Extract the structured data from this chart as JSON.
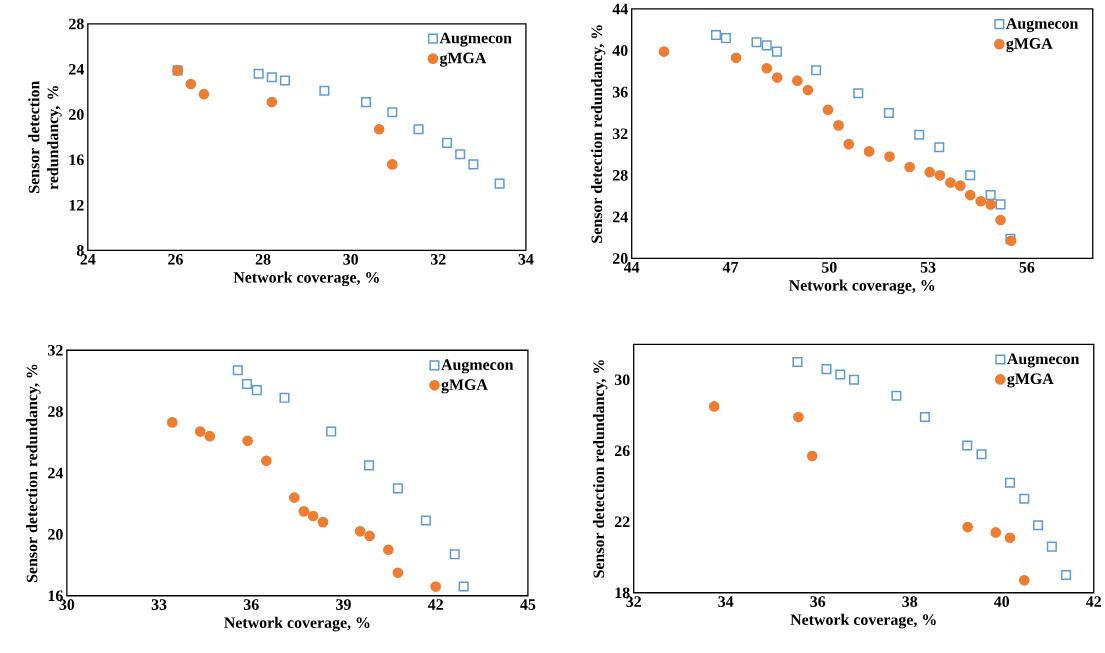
{
  "chart_data": [
    {
      "type": "scatter",
      "xlabel": "Network coverage, %",
      "ylabel": "Sensor detection redundancy, %",
      "xlim": [
        24,
        34
      ],
      "xticks": [
        24,
        26,
        28,
        30,
        32,
        34
      ],
      "ylim": [
        8,
        28
      ],
      "yticks": [
        8,
        12,
        16,
        20,
        24,
        28
      ],
      "legend": "top right",
      "series": [
        {
          "name": "Augmecon",
          "color": "#5b9bd5",
          "marker": "square",
          "x": [
            26.05,
            27.9,
            28.2,
            28.5,
            29.4,
            30.35,
            30.95,
            31.55,
            32.2,
            32.5,
            32.8,
            33.4
          ],
          "values": [
            23.9,
            23.6,
            23.3,
            23.0,
            22.1,
            21.1,
            20.2,
            18.7,
            17.5,
            16.5,
            15.6,
            13.9
          ]
        },
        {
          "name": "gMGA",
          "color": "#ed7d31",
          "marker": "circle",
          "x": [
            26.05,
            26.35,
            26.65,
            28.2,
            30.65,
            30.95
          ],
          "values": [
            23.9,
            22.7,
            21.8,
            21.1,
            18.7,
            15.6
          ]
        }
      ]
    },
    {
      "type": "scatter",
      "xlabel": "Network coverage, %",
      "ylabel": "Sensor detection redundancy, %",
      "xlim": [
        44,
        58
      ],
      "xticks": [
        44,
        47,
        50,
        53,
        56
      ],
      "ylim": [
        20,
        44
      ],
      "yticks": [
        20,
        24,
        28,
        32,
        36,
        40,
        44
      ],
      "legend": "top right",
      "series": [
        {
          "name": "Augmecon",
          "color": "#5b9bd5",
          "marker": "square",
          "x": [
            46.56,
            46.86,
            47.79,
            48.1,
            48.41,
            49.6,
            50.88,
            51.81,
            52.73,
            53.34,
            54.28,
            54.9,
            55.2,
            55.5
          ],
          "values": [
            41.5,
            41.2,
            40.8,
            40.5,
            39.9,
            38.1,
            35.9,
            34.0,
            31.9,
            30.7,
            28.0,
            26.1,
            25.2,
            21.9
          ]
        },
        {
          "name": "gMGA",
          "color": "#ed7d31",
          "marker": "circle",
          "x": [
            44.98,
            47.17,
            48.1,
            48.42,
            49.03,
            49.35,
            49.96,
            50.28,
            50.59,
            51.21,
            51.83,
            52.44,
            53.05,
            53.36,
            53.68,
            53.98,
            54.28,
            54.6,
            54.9,
            55.2,
            55.52
          ],
          "values": [
            39.9,
            39.3,
            38.3,
            37.4,
            37.1,
            36.2,
            34.3,
            32.8,
            31.0,
            30.3,
            29.8,
            28.8,
            28.3,
            28.0,
            27.3,
            27.0,
            26.1,
            25.5,
            25.2,
            23.7,
            21.7
          ]
        }
      ]
    },
    {
      "type": "scatter",
      "xlabel": "Network coverage, %",
      "ylabel": "Sensor detection redundancy, %",
      "xlim": [
        30,
        45
      ],
      "xticks": [
        30,
        33,
        36,
        39,
        42,
        45
      ],
      "ylim": [
        16,
        32
      ],
      "yticks": [
        16,
        20,
        24,
        28,
        32
      ],
      "legend": "top right",
      "series": [
        {
          "name": "Augmecon",
          "color": "#5b9bd5",
          "marker": "square",
          "x": [
            35.56,
            35.86,
            36.18,
            37.08,
            38.6,
            39.83,
            40.77,
            41.68,
            42.62,
            42.91
          ],
          "values": [
            30.7,
            29.8,
            29.4,
            28.9,
            26.7,
            24.5,
            23.0,
            20.9,
            18.7,
            16.6
          ]
        },
        {
          "name": "gMGA",
          "color": "#ed7d31",
          "marker": "circle",
          "x": [
            33.43,
            34.34,
            34.65,
            35.88,
            36.49,
            37.4,
            37.71,
            38.01,
            38.33,
            39.54,
            39.85,
            40.46,
            40.77,
            42.0
          ],
          "values": [
            27.3,
            26.7,
            26.4,
            26.1,
            24.8,
            22.4,
            21.5,
            21.2,
            20.8,
            20.2,
            19.9,
            19.0,
            17.5,
            16.6
          ]
        }
      ]
    },
    {
      "type": "scatter",
      "xlabel": "Network coverage, %",
      "ylabel": "Sensor detection redundancy, %",
      "xlim": [
        32,
        42
      ],
      "xticks": [
        32,
        34,
        36,
        38,
        40,
        42
      ],
      "ylim": [
        18,
        32
      ],
      "yticks": [
        18,
        22,
        26,
        30
      ],
      "legend": "top right",
      "series": [
        {
          "name": "Augmecon",
          "color": "#5b9bd5",
          "marker": "square",
          "x": [
            35.56,
            36.19,
            36.49,
            36.79,
            37.71,
            38.33,
            39.25,
            39.56,
            40.18,
            40.49,
            40.79,
            41.09,
            41.4
          ],
          "values": [
            31.0,
            30.6,
            30.3,
            30.0,
            29.1,
            27.9,
            26.3,
            25.8,
            24.2,
            23.3,
            21.8,
            20.6,
            19.0
          ]
        },
        {
          "name": "gMGA",
          "color": "#ed7d31",
          "marker": "circle",
          "x": [
            33.75,
            35.58,
            35.88,
            39.26,
            39.87,
            40.18,
            40.49
          ],
          "values": [
            28.5,
            27.9,
            25.7,
            21.7,
            21.4,
            21.1,
            18.7
          ]
        }
      ]
    }
  ]
}
